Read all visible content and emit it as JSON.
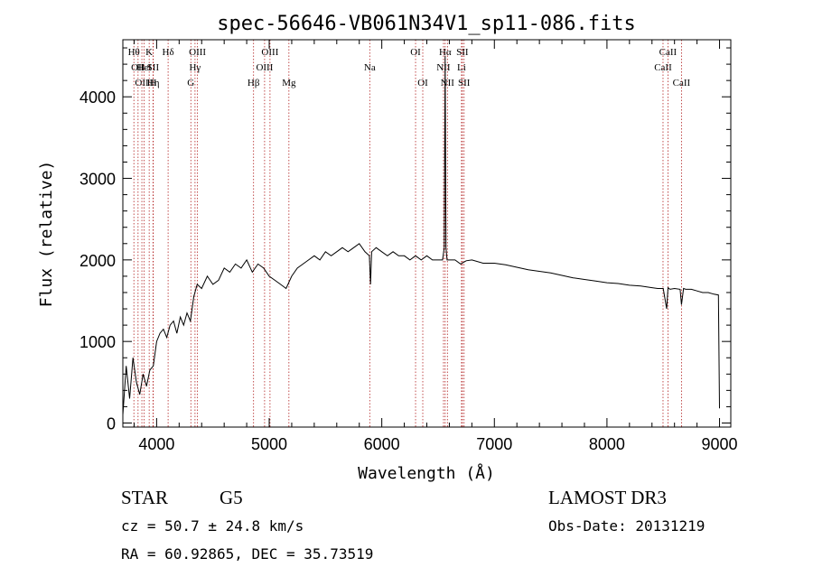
{
  "chart_data": {
    "type": "line",
    "title": "spec-56646-VB061N34V1_sp11-086.fits",
    "xlabel": "Wavelength (Å)",
    "ylabel": "Flux (relative)",
    "xlim": [
      3700,
      9100
    ],
    "ylim": [
      -50,
      4700
    ],
    "x_ticks": [
      4000,
      5000,
      6000,
      7000,
      8000,
      9000
    ],
    "x_tick_labels": [
      "4000",
      "5000",
      "6000",
      "7000",
      "8000",
      "9000"
    ],
    "y_ticks": [
      0,
      1000,
      2000,
      3000,
      4000
    ],
    "y_tick_labels": [
      "0",
      "1000",
      "2000",
      "3000",
      "4000"
    ],
    "grid": false,
    "legend": "none",
    "colors": {
      "spectrum": "#000000",
      "lines": "#b22222",
      "axes": "#000000"
    },
    "series": [
      {
        "x": [
          3700,
          3730,
          3760,
          3790,
          3820,
          3850,
          3880,
          3910,
          3940,
          3970,
          4000,
          4030,
          4060,
          4090,
          4120,
          4150,
          4180,
          4210,
          4240,
          4270,
          4300,
          4330,
          4360,
          4400,
          4450,
          4500,
          4550,
          4600,
          4650,
          4700,
          4750,
          4800,
          4850,
          4900,
          4950,
          5000,
          5050,
          5100,
          5150,
          5200,
          5250,
          5300,
          5350,
          5400,
          5450,
          5500,
          5550,
          5600,
          5650,
          5700,
          5750,
          5800,
          5850,
          5890,
          5900,
          5910,
          5950,
          6000,
          6050,
          6100,
          6150,
          6200,
          6250,
          6300,
          6350,
          6400,
          6450,
          6500,
          6540,
          6555,
          6563,
          6570,
          6580,
          6600,
          6650,
          6700,
          6750,
          6800,
          6900,
          7000,
          7100,
          7200,
          7300,
          7400,
          7500,
          7600,
          7700,
          7800,
          7900,
          8000,
          8100,
          8200,
          8300,
          8400,
          8450,
          8500,
          8530,
          8542,
          8560,
          8600,
          8650,
          8662,
          8680,
          8700,
          8750,
          8800,
          8850,
          8900,
          8950,
          8990,
          9000
        ],
        "y": [
          100,
          700,
          300,
          800,
          500,
          350,
          600,
          450,
          650,
          700,
          1000,
          1100,
          1150,
          1050,
          1200,
          1250,
          1100,
          1300,
          1200,
          1350,
          1250,
          1550,
          1700,
          1650,
          1800,
          1700,
          1750,
          1900,
          1850,
          1950,
          1900,
          2000,
          1850,
          1950,
          1900,
          1800,
          1750,
          1700,
          1650,
          1800,
          1900,
          1950,
          2000,
          2050,
          2000,
          2100,
          2050,
          2100,
          2150,
          2100,
          2150,
          2200,
          2100,
          2050,
          1700,
          2100,
          2150,
          2100,
          2050,
          2100,
          2050,
          2050,
          2000,
          2050,
          2000,
          2050,
          2000,
          2000,
          2000,
          2150,
          4500,
          2150,
          2000,
          2000,
          2000,
          1950,
          1990,
          2000,
          1960,
          1960,
          1940,
          1910,
          1880,
          1860,
          1840,
          1810,
          1780,
          1760,
          1740,
          1720,
          1710,
          1690,
          1680,
          1660,
          1650,
          1650,
          1400,
          1660,
          1640,
          1650,
          1640,
          1450,
          1650,
          1640,
          1640,
          1620,
          1600,
          1600,
          1580,
          1570,
          180
        ]
      }
    ],
    "line_markers": [
      {
        "x": 3798,
        "label": "Hθ",
        "row": 0
      },
      {
        "x": 3835,
        "label": "OII",
        "row": 1
      },
      {
        "x": 3869,
        "label": "OII",
        "row": 2
      },
      {
        "x": 3889,
        "label": "HeI",
        "row": 1
      },
      {
        "x": 3934,
        "label": "K",
        "row": 0
      },
      {
        "x": 3970,
        "label": "Hη",
        "row": 2
      },
      {
        "x": 3968,
        "label": "SII",
        "row": 1
      },
      {
        "x": 3969,
        "label": "H",
        "row": 2
      },
      {
        "x": 4102,
        "label": "Hδ",
        "row": 0
      },
      {
        "x": 4304,
        "label": "G",
        "row": 2
      },
      {
        "x": 4341,
        "label": "Hγ",
        "row": 1
      },
      {
        "x": 4363,
        "label": "OIII",
        "row": 0
      },
      {
        "x": 4861,
        "label": "Hβ",
        "row": 2
      },
      {
        "x": 4959,
        "label": "OIII",
        "row": 1
      },
      {
        "x": 5007,
        "label": "OIII",
        "row": 0
      },
      {
        "x": 5175,
        "label": "Mg",
        "row": 2
      },
      {
        "x": 5893,
        "label": "Na",
        "row": 1
      },
      {
        "x": 6300,
        "label": "OI",
        "row": 0
      },
      {
        "x": 6364,
        "label": "OI",
        "row": 2
      },
      {
        "x": 6548,
        "label": "NII",
        "row": 1
      },
      {
        "x": 6563,
        "label": "Hα",
        "row": 0
      },
      {
        "x": 6583,
        "label": "NII",
        "row": 2
      },
      {
        "x": 6708,
        "label": "Li",
        "row": 1
      },
      {
        "x": 6716,
        "label": "SII",
        "row": 0
      },
      {
        "x": 6731,
        "label": "SII",
        "row": 2
      },
      {
        "x": 8498,
        "label": "CaII",
        "row": 1
      },
      {
        "x": 8542,
        "label": "CaII",
        "row": 0
      },
      {
        "x": 8662,
        "label": "CaII",
        "row": 2
      }
    ]
  },
  "info": {
    "class_label": "STAR",
    "subclass_label": "G5",
    "cz_text": "cz = 50.7 ± 24.8 km/s",
    "coords_text": "RA =  60.92865, DEC =  35.73519",
    "survey_label": "LAMOST DR3",
    "obs_date_text": "Obs-Date: 20131219"
  }
}
